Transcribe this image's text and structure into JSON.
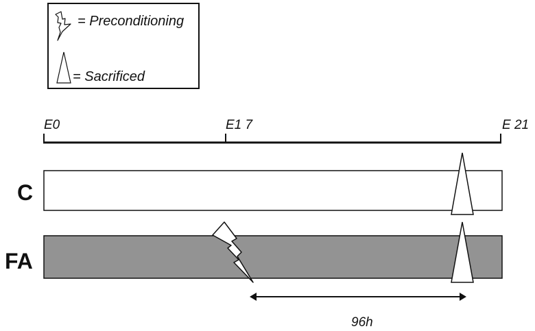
{
  "legend": {
    "preconditioning_label": "= Preconditioning",
    "sacrificed_label": "= Sacrificed"
  },
  "timeline": {
    "ticks": [
      "E0",
      "E1 7",
      "E 21"
    ]
  },
  "groups": [
    {
      "label": "C",
      "color": "#ffffff",
      "preconditioned": false,
      "sacrificed": true
    },
    {
      "label": "FA",
      "color": "#939393",
      "preconditioned": true,
      "sacrificed": true
    }
  ],
  "duration": {
    "label": "96h"
  },
  "colors": {
    "stroke": "#111111",
    "fa_bar": "#939393",
    "c_bar": "#ffffff"
  }
}
